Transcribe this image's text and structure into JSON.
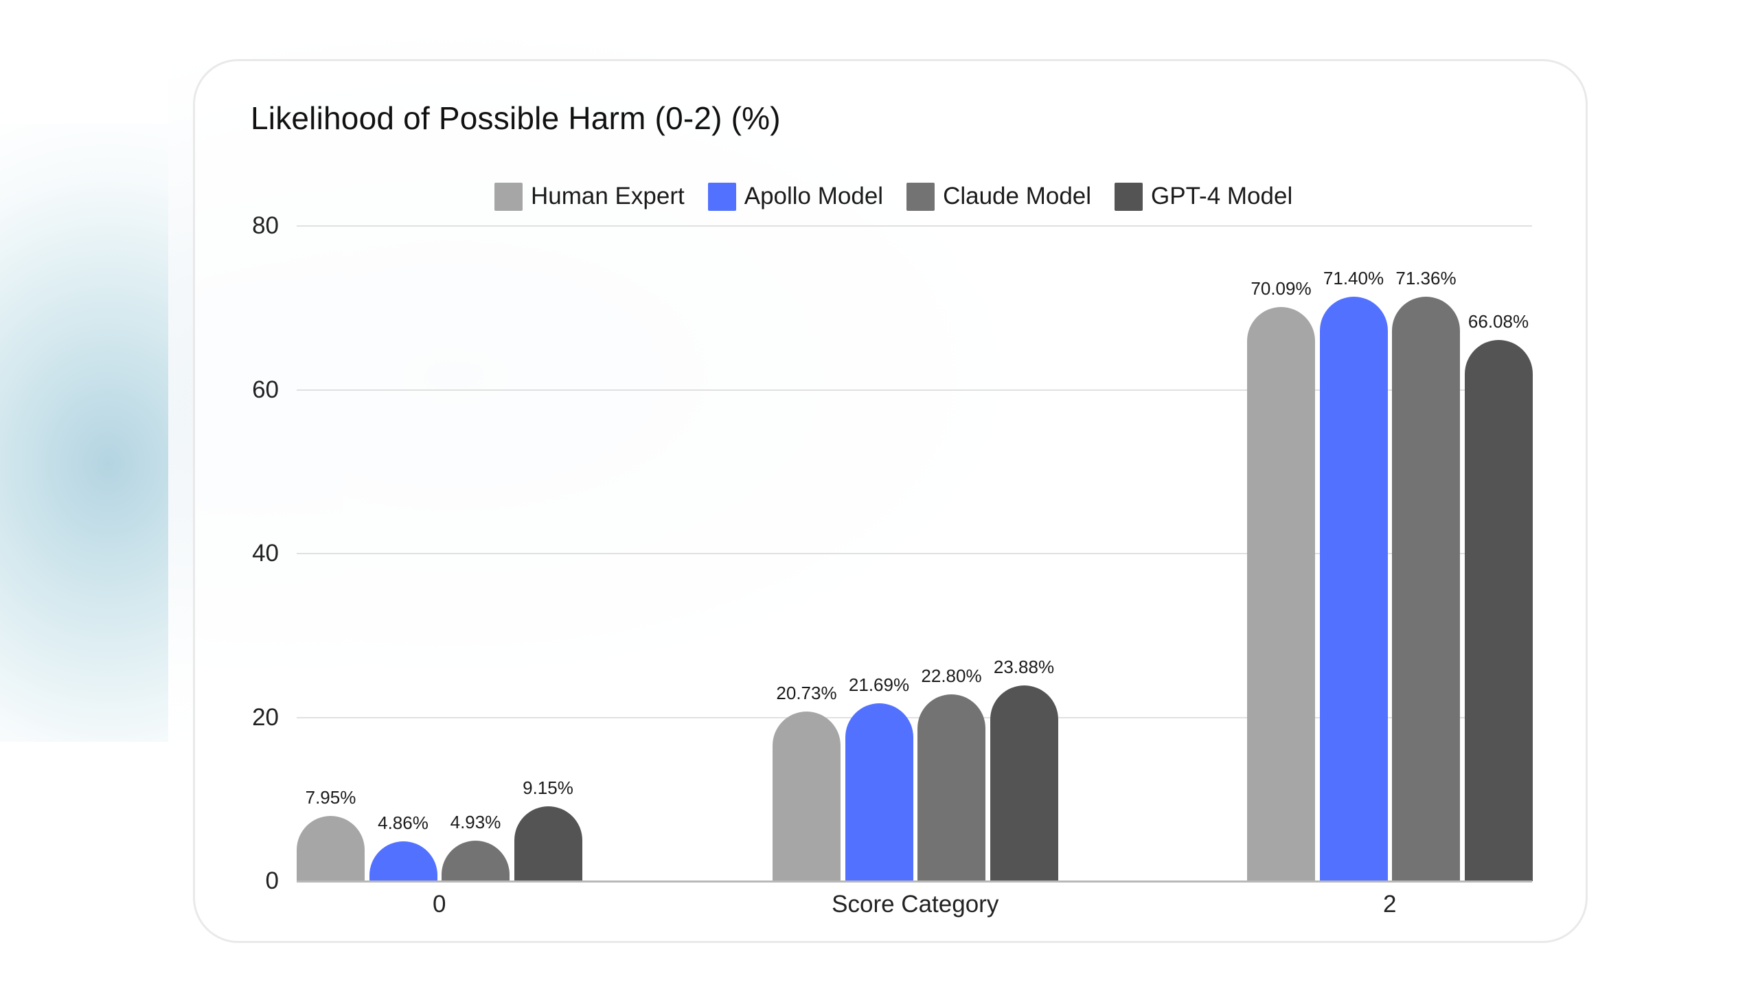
{
  "chart_data": {
    "type": "bar",
    "title": "Likelihood of Possible Harm (0-2) (%)",
    "xlabel": "Score Category",
    "ylabel": "",
    "categories": [
      "0",
      "Score Category",
      "2"
    ],
    "category_note": "Middle category tick label is rendered as the axis title 'Score Category' (represents score 1)",
    "series": [
      {
        "name": "Human Expert",
        "color": "#a6a6a6",
        "values": [
          7.95,
          20.73,
          70.09
        ],
        "labels": [
          "7.95%",
          "20.73%",
          "70.09%"
        ]
      },
      {
        "name": "Apollo Model",
        "color": "#5271ff",
        "values": [
          4.86,
          21.69,
          71.4
        ],
        "labels": [
          "4.86%",
          "21.69%",
          "71.40%"
        ]
      },
      {
        "name": "Claude Model",
        "color": "#737373",
        "values": [
          4.93,
          22.8,
          71.36
        ],
        "labels": [
          "4.93%",
          "22.80%",
          "71.36%"
        ]
      },
      {
        "name": "GPT-4 Model",
        "color": "#545454",
        "values": [
          9.15,
          23.88,
          66.08
        ],
        "labels": [
          "9.15%",
          "23.88%",
          "66.08%"
        ]
      }
    ],
    "ylim": [
      0,
      80
    ],
    "yticks": [
      "0",
      "20",
      "40",
      "60",
      "80"
    ],
    "grid": true,
    "legend_position": "top"
  }
}
